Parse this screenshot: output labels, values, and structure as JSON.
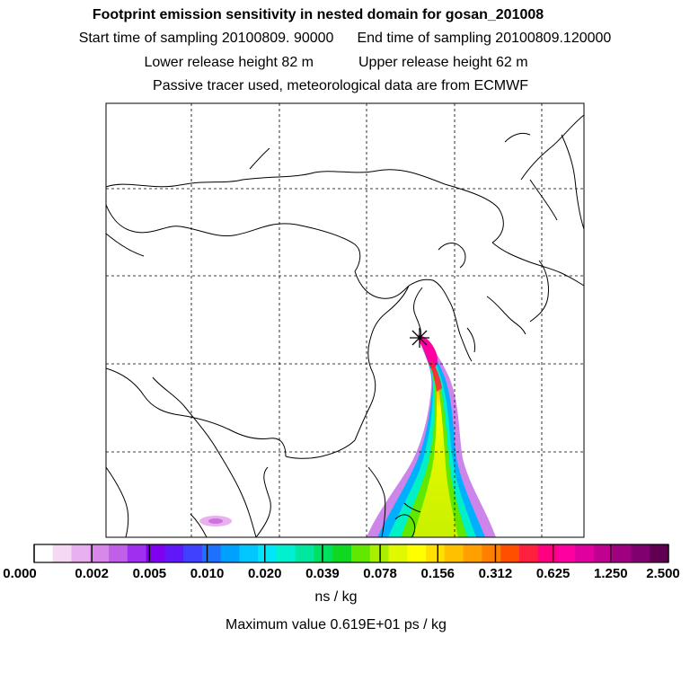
{
  "header": {
    "title": "Footprint emission sensitivity in nested domain for gosan_201008",
    "start_label": "Start time of sampling 20100809. 90000",
    "end_label": "End time of sampling 20100809.120000",
    "lower_label": "Lower release height   82 m",
    "upper_label": "Upper release height   62 m",
    "tracer_note": "Passive tracer used, meteorological data are from ECMWF"
  },
  "map": {
    "release_site_marker": "star-marker"
  },
  "colorbar": {
    "ticks": [
      "0.000",
      "0.002",
      "0.005",
      "0.010",
      "0.020",
      "0.039",
      "0.078",
      "0.156",
      "0.312",
      "0.625",
      "1.250",
      "2.500"
    ],
    "unit": "ns / kg",
    "colors": [
      "#ffffff",
      "#f4d8f4",
      "#e8b0ee",
      "#d888e8",
      "#c060e8",
      "#a030f0",
      "#8000f0",
      "#6018f8",
      "#4040ff",
      "#2070ff",
      "#00a0ff",
      "#00c8ff",
      "#00e8f8",
      "#00f0d0",
      "#00e8a0",
      "#00e060",
      "#10d820",
      "#60e800",
      "#a8f000",
      "#e0f800",
      "#ffff00",
      "#ffe000",
      "#ffc000",
      "#ffa000",
      "#ff8000",
      "#ff5000",
      "#ff2040",
      "#ff0080",
      "#ff00a0",
      "#e000a0",
      "#c00090",
      "#a00080",
      "#800070",
      "#600050"
    ]
  },
  "max_value": "Maximum value  0.619E+01 ps / kg"
}
